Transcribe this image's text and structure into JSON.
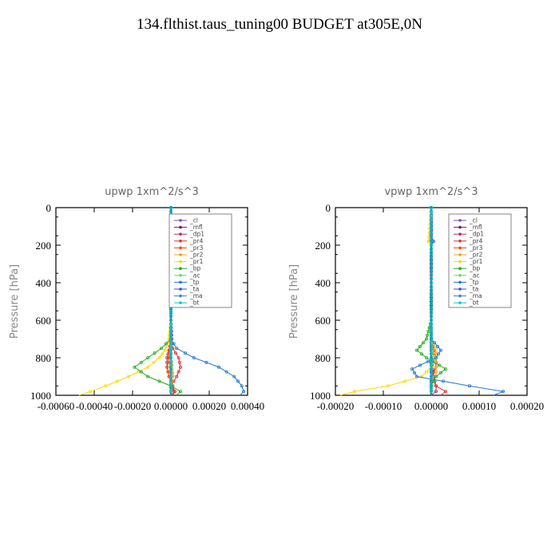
{
  "figure_title": "134.flthist.taus_tuning00  BUDGET at305E,0N",
  "legend_labels": [
    "_cl",
    "_mfl",
    "_dp1",
    "_pr4",
    "_pr3",
    "_pr2",
    "_pr1",
    "_bp",
    "_ac",
    "_tp",
    "_ta",
    "_ma",
    "_bt"
  ],
  "chart_data": [
    {
      "type": "line",
      "title": "upwp   1xm^2/s^3",
      "ylabel": "Pressure [hPa]",
      "xlabel": "",
      "xlim": [
        -0.0006,
        0.0004
      ],
      "ylim": [
        1000,
        0
      ],
      "x_ticks": [
        "-0.00060",
        "-0.00040",
        "-0.00020",
        "0.00000",
        "0.00020",
        "0.00040"
      ],
      "y_ticks": [
        "0",
        "200",
        "400",
        "600",
        "800",
        "1000"
      ],
      "legend_position": "top-right",
      "series": [
        {
          "name": "_cl",
          "color": "#7b52b8",
          "pressure": [
            0,
            100,
            200,
            300,
            400,
            500,
            600,
            700,
            800,
            850,
            900,
            950,
            1000
          ],
          "values": [
            0,
            0,
            0,
            0,
            0,
            0,
            0,
            0,
            0,
            0,
            0,
            0,
            0
          ]
        },
        {
          "name": "_mfl",
          "color": "#6a1b7a",
          "pressure": [
            0,
            100,
            200,
            300,
            400,
            500,
            600,
            700,
            800,
            850,
            900,
            950,
            1000
          ],
          "values": [
            0,
            0,
            0,
            0,
            0,
            0,
            0,
            0,
            0,
            0,
            0,
            0,
            0
          ]
        },
        {
          "name": "_dp1",
          "color": "#b03060",
          "pressure": [
            0,
            200,
            400,
            600,
            700,
            800,
            850,
            900,
            950,
            980,
            1000
          ],
          "values": [
            0,
            0,
            0,
            0,
            5e-06,
            -2e-05,
            -2e-05,
            -1e-05,
            1e-05,
            2e-05,
            1e-05
          ]
        },
        {
          "name": "_pr4",
          "color": "#e03030",
          "pressure": [
            0,
            200,
            400,
            600,
            700,
            750,
            800,
            850,
            900,
            950,
            980,
            1000
          ],
          "values": [
            0,
            0,
            0,
            0,
            0,
            1e-05,
            4e-05,
            5e-05,
            3e-05,
            0,
            2e-05,
            0
          ]
        },
        {
          "name": "_pr3",
          "color": "#ff4500",
          "pressure": [
            0,
            200,
            400,
            600,
            700,
            800,
            850,
            900,
            950,
            1000
          ],
          "values": [
            0,
            0,
            0,
            0,
            0,
            -1e-05,
            -2e-05,
            -1e-05,
            1e-05,
            0
          ]
        },
        {
          "name": "_pr2",
          "color": "#f0a020",
          "pressure": [
            0,
            200,
            400,
            600,
            700,
            800,
            900,
            950,
            1000
          ],
          "values": [
            0,
            0,
            0,
            0,
            0,
            0,
            1e-05,
            0,
            0
          ]
        },
        {
          "name": "_pr1",
          "color": "#ffd700",
          "pressure": [
            0,
            200,
            400,
            600,
            700,
            760,
            800,
            850,
            900,
            950,
            980,
            1000
          ],
          "values": [
            0,
            -3e-06,
            0,
            0,
            -1e-05,
            -3e-05,
            -6e-05,
            -0.00012,
            -0.00022,
            -0.00034,
            -0.00042,
            -0.00048
          ]
        },
        {
          "name": "_bp",
          "color": "#22aa22",
          "pressure": [
            0,
            200,
            400,
            600,
            700,
            750,
            800,
            850,
            900,
            950,
            980,
            1000
          ],
          "values": [
            0,
            0,
            0,
            0,
            0,
            -5e-05,
            -0.00012,
            -0.00019,
            -0.00012,
            0,
            5e-05,
            3e-05
          ]
        },
        {
          "name": "_ac",
          "color": "#66dd66",
          "pressure": [
            0,
            200,
            400,
            600,
            800,
            900,
            1000
          ],
          "values": [
            0,
            0,
            0,
            0,
            0,
            0,
            0
          ]
        },
        {
          "name": "_tp",
          "color": "#1f77d4",
          "pressure": [
            0,
            200,
            400,
            600,
            700,
            750,
            800,
            850,
            900,
            950,
            980,
            1000
          ],
          "values": [
            0,
            0,
            0,
            0,
            0,
            3e-05,
            0.00012,
            0.00025,
            0.00033,
            0.00037,
            0.00038,
            0.00036
          ]
        },
        {
          "name": "_ta",
          "color": "#3355cc",
          "pressure": [
            0,
            200,
            400,
            600,
            800,
            900,
            1000
          ],
          "values": [
            0,
            0,
            0,
            0,
            0,
            0,
            0
          ]
        },
        {
          "name": "_ma",
          "color": "#4682b4",
          "pressure": [
            0,
            200,
            400,
            600,
            800,
            900,
            1000
          ],
          "values": [
            0,
            0,
            0,
            0,
            0,
            0,
            0
          ]
        },
        {
          "name": "_bt",
          "color": "#00ced1",
          "pressure": [
            0,
            200,
            400,
            600,
            800,
            900,
            1000
          ],
          "values": [
            0,
            0,
            0,
            0,
            0,
            0,
            0
          ]
        }
      ]
    },
    {
      "type": "line",
      "title": "vpwp   1xm^2/s^3",
      "ylabel": "Pressure [hPa]",
      "xlabel": "",
      "xlim": [
        -0.0002,
        0.0002
      ],
      "ylim": [
        1000,
        0
      ],
      "x_ticks": [
        "-0.00020",
        "-0.00010",
        "0.00000",
        "0.00010",
        "0.00020"
      ],
      "y_ticks": [
        "0",
        "200",
        "400",
        "600",
        "800",
        "1000"
      ],
      "legend_position": "top-right",
      "series": [
        {
          "name": "_cl",
          "color": "#7b52b8",
          "pressure": [
            0,
            100,
            200,
            300,
            400,
            500,
            600,
            700,
            800,
            850,
            900,
            950,
            1000
          ],
          "values": [
            0,
            0,
            0,
            0,
            0,
            0,
            0,
            0,
            0,
            0,
            0,
            0,
            0
          ]
        },
        {
          "name": "_mfl",
          "color": "#6a1b7a",
          "pressure": [
            0,
            100,
            200,
            300,
            400,
            500,
            600,
            700,
            800,
            850,
            900,
            950,
            1000
          ],
          "values": [
            0,
            0,
            0,
            0,
            0,
            0,
            0,
            0,
            0,
            0,
            0,
            0,
            0
          ]
        },
        {
          "name": "_dp1",
          "color": "#b03060",
          "pressure": [
            0,
            200,
            400,
            600,
            800,
            900,
            950,
            980,
            1000
          ],
          "values": [
            0,
            0,
            0,
            0,
            0,
            5e-06,
            1e-05,
            1e-05,
            0
          ]
        },
        {
          "name": "_pr4",
          "color": "#e03030",
          "pressure": [
            0,
            200,
            400,
            600,
            700,
            800,
            850,
            900,
            950,
            980,
            1000
          ],
          "values": [
            0,
            0,
            0,
            0,
            0,
            1e-05,
            1e-05,
            0,
            1e-05,
            3e-05,
            2e-05
          ]
        },
        {
          "name": "_pr3",
          "color": "#ff4500",
          "pressure": [
            0,
            200,
            400,
            600,
            800,
            900,
            1000
          ],
          "values": [
            0,
            0,
            0,
            0,
            0,
            0,
            0
          ]
        },
        {
          "name": "_pr2",
          "color": "#f0a020",
          "pressure": [
            0,
            150,
            180,
            200,
            400,
            600,
            700,
            800,
            850,
            900,
            950,
            1000
          ],
          "values": [
            0,
            0,
            -5e-06,
            0,
            0,
            0,
            0,
            5e-06,
            1e-05,
            1e-05,
            0,
            0
          ]
        },
        {
          "name": "_pr1",
          "color": "#ffd700",
          "pressure": [
            0,
            180,
            200,
            400,
            600,
            700,
            750,
            800,
            850,
            900,
            950,
            980,
            1000
          ],
          "values": [
            0,
            -5e-06,
            0,
            0,
            0,
            0,
            1e-05,
            1e-05,
            0,
            -2e-05,
            -9e-05,
            -0.00016,
            -0.00019
          ]
        },
        {
          "name": "_bp",
          "color": "#22aa22",
          "pressure": [
            0,
            200,
            400,
            600,
            700,
            760,
            800,
            860,
            900,
            950,
            1000
          ],
          "values": [
            0,
            0,
            0,
            0,
            -1e-05,
            -3e-05,
            -1e-05,
            3e-05,
            1e-05,
            0,
            0
          ]
        },
        {
          "name": "_ac",
          "color": "#66dd66",
          "pressure": [
            0,
            200,
            400,
            600,
            800,
            900,
            1000
          ],
          "values": [
            0,
            0,
            0,
            0,
            0,
            0,
            0
          ]
        },
        {
          "name": "_tp",
          "color": "#1f77d4",
          "pressure": [
            0,
            200,
            400,
            600,
            700,
            760,
            800,
            860,
            900,
            950,
            980,
            1000
          ],
          "values": [
            0,
            0,
            0,
            0,
            0,
            2e-05,
            1e-05,
            -4e-05,
            -3e-05,
            8e-05,
            0.00015,
            0.00013
          ]
        },
        {
          "name": "_ta",
          "color": "#3355cc",
          "pressure": [
            0,
            150,
            180,
            200,
            400,
            600,
            800,
            900,
            1000
          ],
          "values": [
            0,
            0,
            5e-06,
            0,
            0,
            0,
            0,
            0,
            0
          ]
        },
        {
          "name": "_ma",
          "color": "#4682b4",
          "pressure": [
            0,
            200,
            400,
            600,
            800,
            900,
            1000
          ],
          "values": [
            0,
            0,
            0,
            0,
            0,
            0,
            0
          ]
        },
        {
          "name": "_bt",
          "color": "#00ced1",
          "pressure": [
            0,
            200,
            400,
            600,
            800,
            900,
            1000
          ],
          "values": [
            0,
            0,
            0,
            0,
            0,
            0,
            0
          ]
        }
      ]
    }
  ]
}
